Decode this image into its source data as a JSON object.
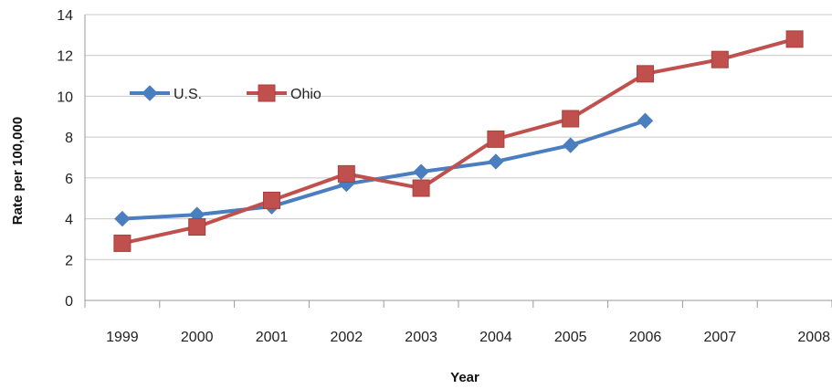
{
  "chart_data": {
    "type": "line",
    "categories": [
      "1999",
      "2000",
      "2001",
      "2002",
      "2003",
      "2004",
      "2005",
      "2006",
      "2007",
      "2008"
    ],
    "series": [
      {
        "name": "U.S.",
        "color": "#4a7ebf",
        "marker": "diamond",
        "values": [
          4.0,
          4.2,
          4.6,
          5.7,
          6.3,
          6.8,
          7.6,
          8.8,
          null,
          null
        ]
      },
      {
        "name": "Ohio",
        "color": "#c0504d",
        "marker": "square",
        "values": [
          2.8,
          3.6,
          4.9,
          6.2,
          5.5,
          7.9,
          8.9,
          11.1,
          11.8,
          12.8
        ]
      }
    ],
    "xlabel": "Year",
    "ylabel": "Rate per 100,000",
    "ylim": [
      0,
      14
    ],
    "yticks": [
      "0",
      "2",
      "4",
      "6",
      "8",
      "10",
      "12",
      "14"
    ],
    "grid": true,
    "legend": "top-left"
  }
}
